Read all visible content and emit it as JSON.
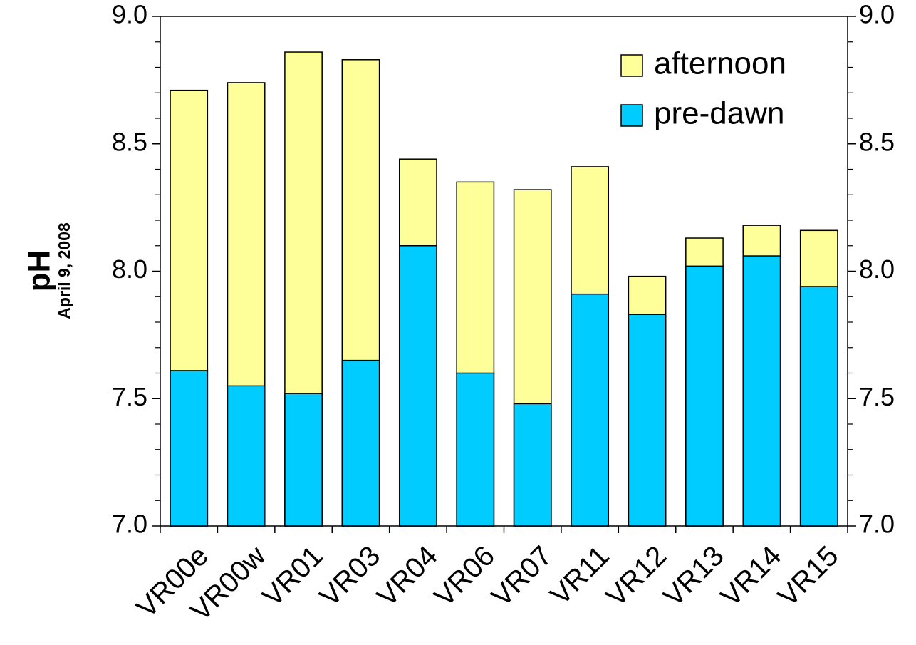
{
  "chart_data": {
    "type": "overlapping_bar",
    "ylabel": "pH",
    "ylabel_note": "April 9, 2008",
    "categories": [
      "VR00e",
      "VR00w",
      "VR01",
      "VR03",
      "VR04",
      "VR06",
      "VR07",
      "VR11",
      "VR12",
      "VR13",
      "VR14",
      "VR15"
    ],
    "series": [
      {
        "name": "afternoon",
        "color": "#ffff99",
        "values": [
          8.71,
          8.74,
          8.86,
          8.83,
          8.44,
          8.35,
          8.32,
          8.41,
          7.98,
          8.13,
          8.18,
          8.16
        ]
      },
      {
        "name": "pre-dawn",
        "color": "#00ccff",
        "values": [
          7.61,
          7.55,
          7.52,
          7.65,
          8.1,
          7.6,
          7.48,
          7.91,
          7.83,
          8.02,
          8.06,
          7.94
        ]
      }
    ],
    "ylim": [
      7,
      9
    ],
    "yticks": [
      {
        "value": 9,
        "label": "9.0"
      },
      {
        "value": 8.5,
        "label": "8.5"
      },
      {
        "value": 8,
        "label": "8.0"
      },
      {
        "value": 7.5,
        "label": "7.5"
      },
      {
        "value": 7,
        "label": "7.0"
      }
    ],
    "yminorticks": [
      7.1,
      7.2,
      7.3,
      7.4,
      7.6,
      7.7,
      7.8,
      7.9,
      8.1,
      8.2,
      8.3,
      8.4,
      8.6,
      8.7,
      8.8,
      8.9
    ],
    "right_axis_labels": true,
    "grid": false,
    "legend": "upper right"
  }
}
